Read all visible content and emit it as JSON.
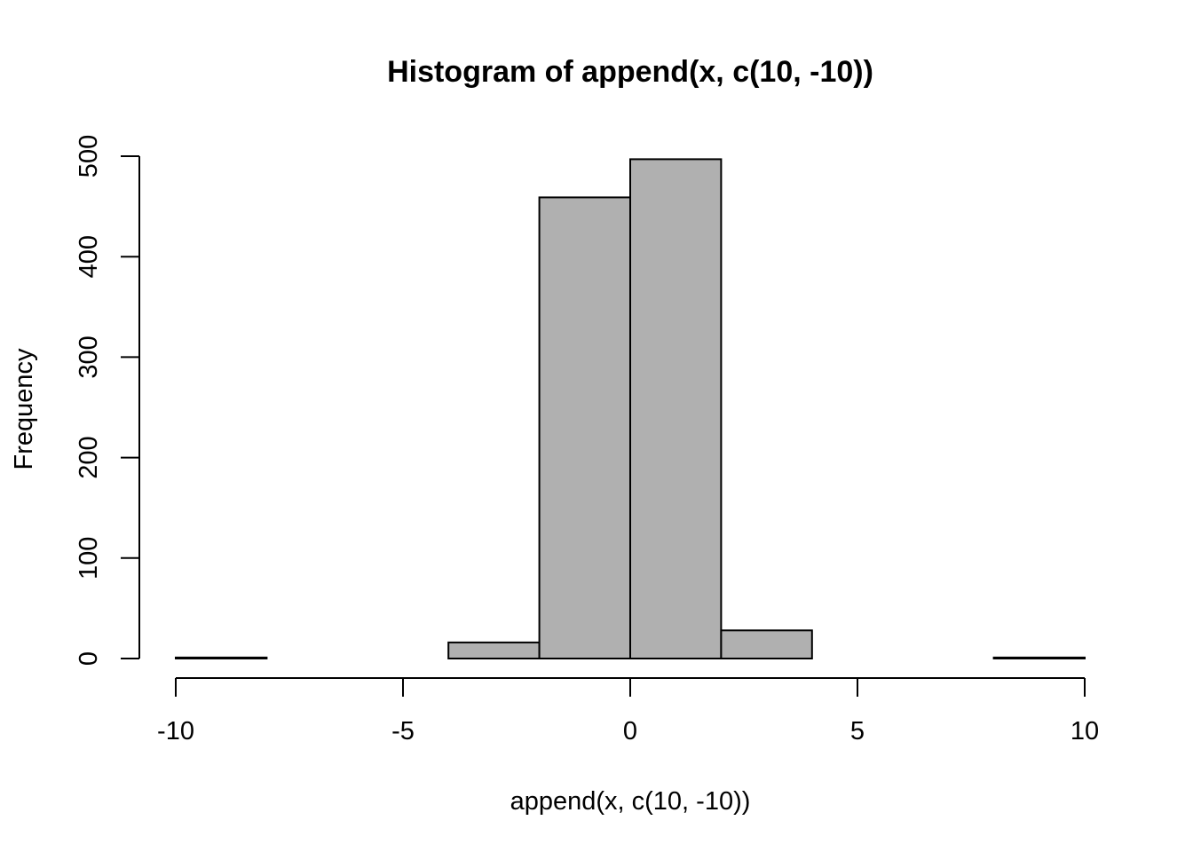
{
  "chart_data": {
    "type": "bar",
    "title": "Histogram of append(x, c(10, -10))",
    "xlabel": "append(x, c(10, -10))",
    "ylabel": "Frequency",
    "bins": [
      {
        "x0": -10,
        "x1": -8,
        "count": 1
      },
      {
        "x0": -8,
        "x1": -6,
        "count": 0
      },
      {
        "x0": -6,
        "x1": -4,
        "count": 0
      },
      {
        "x0": -4,
        "x1": -2,
        "count": 16
      },
      {
        "x0": -2,
        "x1": 0,
        "count": 459
      },
      {
        "x0": 0,
        "x1": 2,
        "count": 497
      },
      {
        "x0": 2,
        "x1": 4,
        "count": 28
      },
      {
        "x0": 4,
        "x1": 6,
        "count": 0
      },
      {
        "x0": 6,
        "x1": 8,
        "count": 0
      },
      {
        "x0": 8,
        "x1": 10,
        "count": 1
      }
    ],
    "xlim": [
      -10,
      10
    ],
    "ylim": [
      0,
      500
    ],
    "x_ticks": [
      {
        "value": -10,
        "label": "-10"
      },
      {
        "value": -5,
        "label": "-5"
      },
      {
        "value": 0,
        "label": "0"
      },
      {
        "value": 5,
        "label": "5"
      },
      {
        "value": 10,
        "label": "10"
      }
    ],
    "y_ticks": [
      {
        "value": 0,
        "label": "0"
      },
      {
        "value": 100,
        "label": "100"
      },
      {
        "value": 200,
        "label": "200"
      },
      {
        "value": 300,
        "label": "300"
      },
      {
        "value": 400,
        "label": "400"
      },
      {
        "value": 500,
        "label": "500"
      }
    ],
    "bar_color": "#b0b0b0",
    "grid": false,
    "legend": "none"
  }
}
